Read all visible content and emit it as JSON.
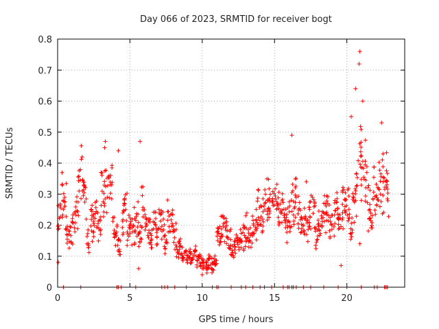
{
  "chart_data": {
    "type": "scatter",
    "title": "Day 066 of 2023, SRMTID for receiver bogt",
    "xlabel": "GPS time / hours",
    "ylabel": "SRMTID / TECUs",
    "xlim": [
      0,
      24
    ],
    "ylim": [
      0,
      0.8
    ],
    "xticks": [
      0,
      5,
      10,
      15,
      20
    ],
    "xtick_labels": [
      "0",
      "5",
      "10",
      "15",
      "20"
    ],
    "yticks": [
      0,
      0.1,
      0.2,
      0.3,
      0.4,
      0.5,
      0.6,
      0.7,
      0.8
    ],
    "ytick_labels": [
      "0",
      "0.1",
      "0.2",
      "0.3",
      "0.4",
      "0.5",
      "0.6",
      "0.7",
      "0.8"
    ],
    "grid": true,
    "marker": "+",
    "color": "#ff0000",
    "series": [
      {
        "name": "SRMTID",
        "x": [
          0.0,
          0.2,
          0.4,
          0.6,
          0.8,
          1.0,
          1.2,
          1.4,
          1.6,
          1.8,
          2.0,
          2.2,
          2.4,
          2.6,
          2.8,
          3.0,
          3.2,
          3.4,
          3.6,
          3.8,
          4.0,
          4.2,
          4.4,
          4.6,
          4.8,
          5.0,
          5.2,
          5.4,
          5.6,
          5.8,
          6.0,
          6.2,
          6.4,
          6.6,
          6.8,
          7.0,
          7.2,
          7.4,
          7.6,
          7.8,
          8.0,
          8.2,
          8.4,
          8.6,
          8.8,
          9.0,
          9.2,
          9.4,
          9.6,
          9.8,
          10.0,
          10.2,
          10.4,
          10.6,
          10.8,
          11.0,
          11.2,
          11.4,
          11.6,
          11.8,
          12.0,
          12.2,
          12.4,
          12.6,
          12.8,
          13.0,
          13.2,
          13.4,
          13.6,
          13.8,
          14.0,
          14.2,
          14.4,
          14.6,
          14.8,
          15.0,
          15.2,
          15.4,
          15.6,
          15.8,
          16.0,
          16.2,
          16.4,
          16.6,
          16.8,
          17.0,
          17.2,
          17.4,
          17.6,
          17.8,
          18.0,
          18.2,
          18.4,
          18.6,
          18.8,
          19.0,
          19.2,
          19.4,
          19.6,
          19.8,
          20.0,
          20.2,
          20.4,
          20.6,
          20.8,
          21.0,
          21.2,
          21.4,
          21.6,
          21.8,
          22.0,
          22.2,
          22.4,
          22.6,
          22.8
        ],
        "y": [
          0.22,
          0.3,
          0.27,
          0.18,
          0.15,
          0.2,
          0.24,
          0.33,
          0.36,
          0.3,
          0.16,
          0.21,
          0.19,
          0.23,
          0.2,
          0.29,
          0.34,
          0.3,
          0.33,
          0.19,
          0.16,
          0.13,
          0.22,
          0.26,
          0.18,
          0.19,
          0.2,
          0.23,
          0.17,
          0.25,
          0.2,
          0.18,
          0.15,
          0.21,
          0.17,
          0.22,
          0.19,
          0.14,
          0.22,
          0.21,
          0.16,
          0.12,
          0.13,
          0.1,
          0.11,
          0.1,
          0.09,
          0.11,
          0.09,
          0.08,
          0.07,
          0.06,
          0.08,
          0.07,
          0.09,
          0.17,
          0.18,
          0.2,
          0.19,
          0.16,
          0.11,
          0.14,
          0.13,
          0.15,
          0.17,
          0.19,
          0.16,
          0.18,
          0.2,
          0.24,
          0.22,
          0.25,
          0.27,
          0.26,
          0.29,
          0.27,
          0.25,
          0.24,
          0.22,
          0.21,
          0.23,
          0.27,
          0.3,
          0.25,
          0.18,
          0.22,
          0.2,
          0.24,
          0.26,
          0.16,
          0.19,
          0.21,
          0.23,
          0.25,
          0.2,
          0.23,
          0.27,
          0.21,
          0.26,
          0.3,
          0.25,
          0.2,
          0.3,
          0.33,
          0.45,
          0.36,
          0.38,
          0.27,
          0.24,
          0.31,
          0.29,
          0.33,
          0.35,
          0.36,
          0.31
        ],
        "y_extremes": [
          {
            "x": 0.05,
            "y": 0.08
          },
          {
            "x": 1.7,
            "y": 0.42
          },
          {
            "x": 3.3,
            "y": 0.47
          },
          {
            "x": 4.2,
            "y": 0.44
          },
          {
            "x": 5.7,
            "y": 0.47
          },
          {
            "x": 5.6,
            "y": 0.06
          },
          {
            "x": 10.0,
            "y": 0.04
          },
          {
            "x": 16.2,
            "y": 0.49
          },
          {
            "x": 17.2,
            "y": 0.34
          },
          {
            "x": 20.3,
            "y": 0.55
          },
          {
            "x": 20.6,
            "y": 0.64
          },
          {
            "x": 20.9,
            "y": 0.76
          },
          {
            "x": 20.85,
            "y": 0.72
          },
          {
            "x": 21.1,
            "y": 0.6
          },
          {
            "x": 22.4,
            "y": 0.53
          },
          {
            "x": 20.9,
            "y": 0.14
          },
          {
            "x": 19.6,
            "y": 0.07
          }
        ],
        "zero_markers_x": [
          0.4,
          1.6,
          4.1,
          4.2,
          4.4,
          5.4,
          7.2,
          7.4,
          7.6,
          8.1,
          8.9,
          10.7,
          11.0,
          11.1,
          12.0,
          12.7,
          13.0,
          13.5,
          14.0,
          14.3,
          14.8,
          15.6,
          15.9,
          16.0,
          16.2,
          16.3,
          16.5,
          17.0,
          17.5,
          18.4,
          19.4,
          20.0,
          21.0,
          21.9,
          22.1,
          22.6,
          22.7,
          22.8
        ]
      }
    ]
  }
}
